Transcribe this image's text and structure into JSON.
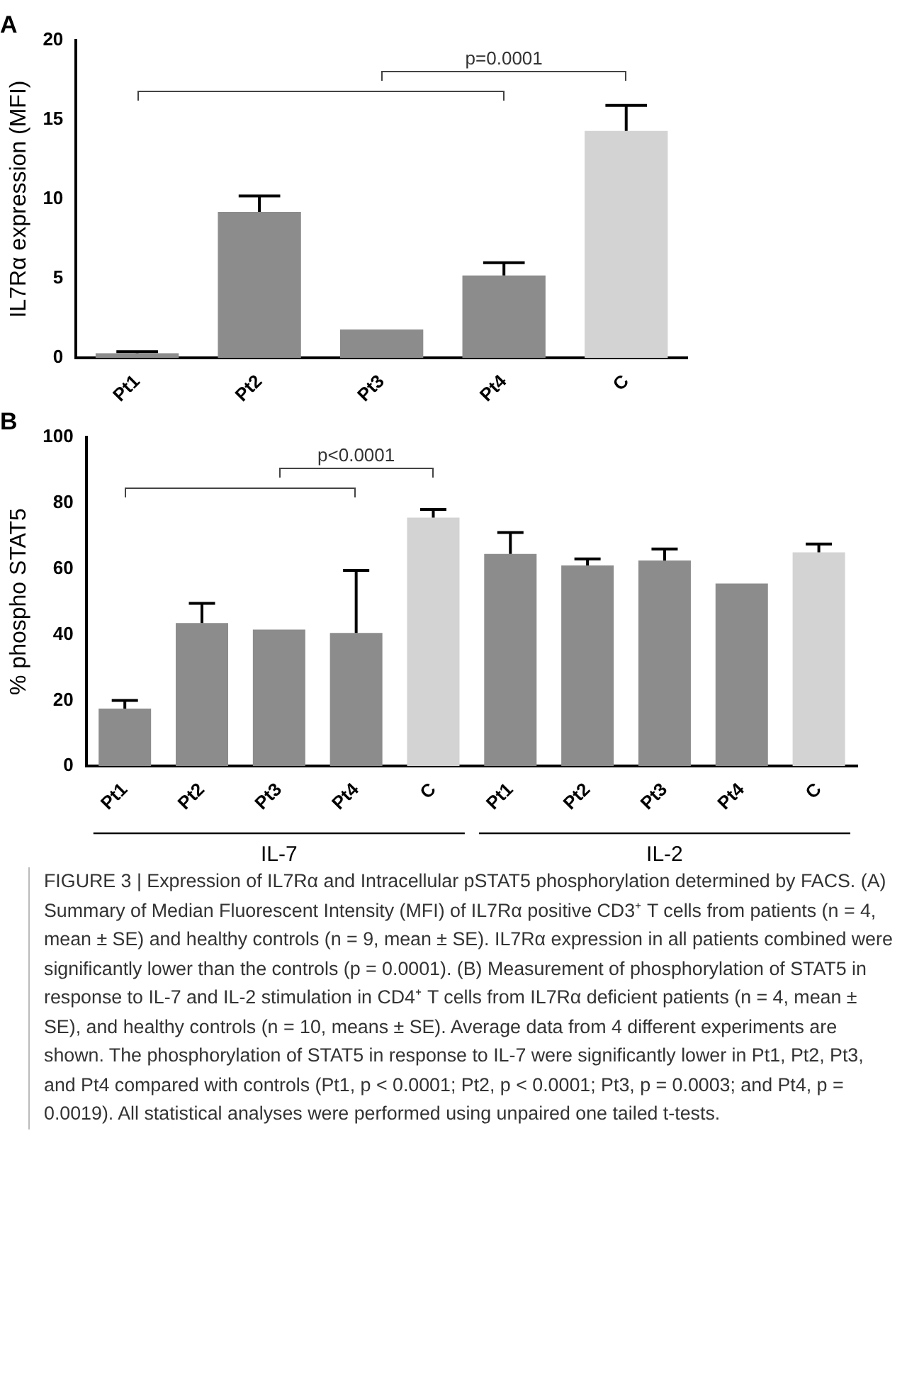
{
  "chart_data": [
    {
      "type": "bar",
      "title": "A",
      "ylabel": "IL7Rα expression (MFI)",
      "categories": [
        "Pt1",
        "Pt2",
        "Pt3",
        "Pt4",
        "C"
      ],
      "values": [
        0.3,
        9.2,
        1.8,
        5.2,
        14.3
      ],
      "errors": [
        [
          0.3,
          0.4
        ],
        [
          9.2,
          10.2
        ],
        null,
        [
          5.2,
          6.0
        ],
        [
          14.3,
          15.9
        ]
      ],
      "colors": [
        "#8c8c8c",
        "#8c8c8c",
        "#8c8c8c",
        "#8c8c8c",
        "#d3d3d3"
      ],
      "ylim": [
        0,
        20
      ],
      "yticks": [
        0,
        5,
        10,
        15,
        20
      ],
      "grid": false,
      "legend": false,
      "annotations": [
        "p=0.0001"
      ]
    },
    {
      "type": "bar",
      "title": "B",
      "ylabel": "% phospho STAT5",
      "categories": [
        "Pt1",
        "Pt2",
        "Pt3",
        "Pt4",
        "C",
        "Pt1",
        "Pt2",
        "Pt3",
        "Pt4",
        "C"
      ],
      "values": [
        17.5,
        43.5,
        41.5,
        40.5,
        75.5,
        64.5,
        61,
        62.5,
        55.5,
        65
      ],
      "errors": [
        [
          17.5,
          20
        ],
        [
          43.5,
          49.5
        ],
        null,
        [
          40.5,
          59.5
        ],
        [
          75.5,
          78
        ],
        [
          64.5,
          71
        ],
        [
          61,
          63
        ],
        [
          62.5,
          66
        ],
        null,
        [
          65,
          67.5
        ]
      ],
      "colors": [
        "#8c8c8c",
        "#8c8c8c",
        "#8c8c8c",
        "#8c8c8c",
        "#d3d3d3",
        "#8c8c8c",
        "#8c8c8c",
        "#8c8c8c",
        "#8c8c8c",
        "#d3d3d3"
      ],
      "ylim": [
        0,
        100
      ],
      "yticks": [
        0,
        20,
        40,
        60,
        80,
        100
      ],
      "grid": false,
      "legend": false,
      "annotations": [
        "p<0.0001",
        "IL-7",
        "IL-2",
        "FIGURE 3 | Expression of IL7Rα and Intracellular pSTAT5 phosphorylation determined by FACS. (A) Summary of Median Fluorescent Intensity (MFI) of IL7Rα positive CD3⁺ T cells from patients (n = 4, mean ± SE) and healthy controls (n = 9, mean ± SE). IL7Rα expression in all patients combined were significantly lower than the controls (p = 0.0001). (B) Measurement of phosphorylation of STAT5 in response to IL-7 and IL-2 stimulation in CD4⁺ T cells from IL7Rα deficient patients (n = 4, mean ± SE), and healthy controls (n = 10, means ± SE). Average data from 4 different experiments are shown. The phosphorylation of STAT5 in response to IL-7 were significantly lower in Pt1, Pt2, Pt3, and Pt4 compared with controls (Pt1, p < 0.0001; Pt2, p < 0.0001; Pt3, p = 0.0003; and Pt4, p = 0.0019). All statistical analyses were performed using unpaired one tailed t-tests."
      ]
    }
  ]
}
